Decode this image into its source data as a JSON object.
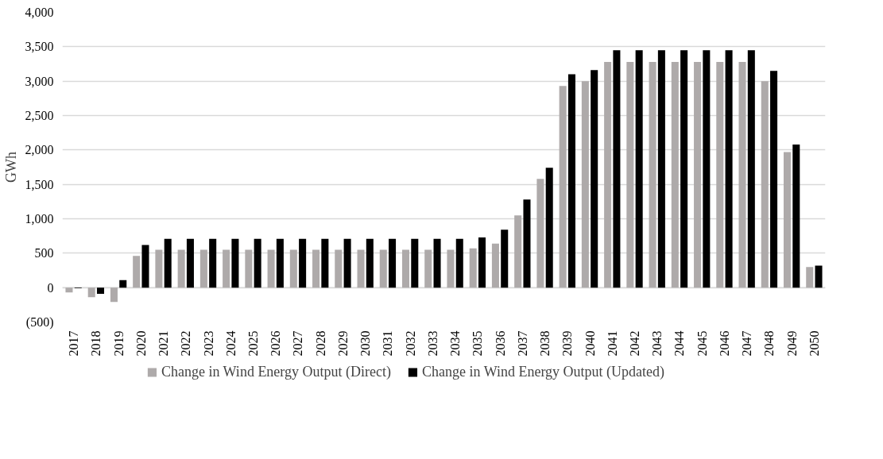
{
  "chart_data": {
    "type": "bar",
    "ylabel": "GWh",
    "categories": [
      "2017",
      "2018",
      "2019",
      "2020",
      "2021",
      "2022",
      "2023",
      "2024",
      "2025",
      "2026",
      "2027",
      "2028",
      "2029",
      "2030",
      "2031",
      "2032",
      "2033",
      "2034",
      "2035",
      "2036",
      "2037",
      "2038",
      "2039",
      "2040",
      "2041",
      "2042",
      "2043",
      "2044",
      "2045",
      "2046",
      "2047",
      "2048",
      "2049",
      "2050"
    ],
    "series": [
      {
        "name": "Change in Wind Energy Output (Direct)",
        "color": "#aeaaaa",
        "values": [
          -70,
          -140,
          -210,
          460,
          550,
          550,
          550,
          550,
          550,
          550,
          550,
          550,
          550,
          550,
          550,
          550,
          550,
          550,
          570,
          640,
          1050,
          1580,
          2930,
          3000,
          3280,
          3280,
          3280,
          3280,
          3280,
          3280,
          3280,
          3000,
          1970,
          300
        ]
      },
      {
        "name": "Change in Wind Energy Output (Updated)",
        "color": "#000000",
        "values": [
          -10,
          -90,
          110,
          620,
          710,
          710,
          710,
          710,
          710,
          710,
          710,
          710,
          710,
          710,
          710,
          710,
          710,
          710,
          730,
          840,
          1280,
          1740,
          3100,
          3160,
          3450,
          3450,
          3450,
          3450,
          3450,
          3450,
          3450,
          3150,
          2080,
          320
        ]
      }
    ],
    "ylim": [
      -500,
      4000
    ],
    "yticks": [
      {
        "value": -500,
        "label": "(500)"
      },
      0,
      {
        "value": 500,
        "label": "500"
      },
      {
        "value": 1000,
        "label": "1,000"
      },
      {
        "value": 1500,
        "label": "1,500"
      },
      {
        "value": 2000,
        "label": "2,000"
      },
      {
        "value": 2500,
        "label": "2,500"
      },
      {
        "value": 3000,
        "label": "3,000"
      },
      {
        "value": 3500,
        "label": "3,500"
      },
      {
        "value": 4000,
        "label": "4,000"
      }
    ],
    "grid": "y",
    "legend": "bottom"
  }
}
